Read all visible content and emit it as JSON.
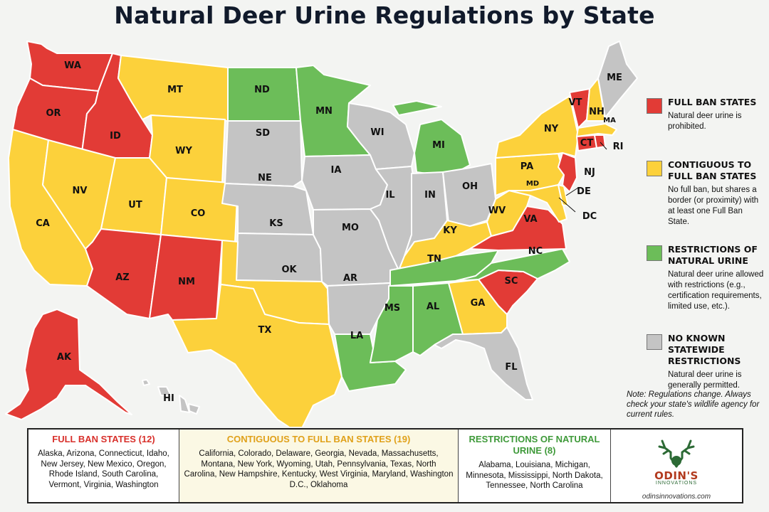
{
  "title": "Natural Deer Urine Regulations by State",
  "colors": {
    "full_ban": "#e23b36",
    "contiguous": "#fcd13b",
    "restrictions": "#6cbd59",
    "none": "#c4c4c4"
  },
  "states": {
    "WA": "WA",
    "OR": "OR",
    "ID": "ID",
    "CA": "CA",
    "NV": "NV",
    "MT": "MT",
    "WY": "WY",
    "UT": "UT",
    "CO": "CO",
    "AZ": "AZ",
    "NM": "NM",
    "ND": "ND",
    "SD": "SD",
    "NE": "NE",
    "KS": "KS",
    "OK": "OK",
    "TX": "TX",
    "MN": "MN",
    "IA": "IA",
    "MO": "MO",
    "AR": "AR",
    "LA": "LA",
    "WI": "WI",
    "IL": "IL",
    "MI": "MI",
    "IN": "IN",
    "OH": "OH",
    "KY": "KY",
    "TN": "TN",
    "MS": "MS",
    "AL": "AL",
    "GA": "GA",
    "FL": "FL",
    "SC": "SC",
    "NC": "NC",
    "VA": "VA",
    "WV": "WV",
    "PA": "PA",
    "NY": "NY",
    "VT": "VT",
    "NH": "NH",
    "ME": "ME",
    "MA": "MA",
    "CT": "CT",
    "RI": "RI",
    "NJ": "NJ",
    "DE": "DE",
    "MD": "MD",
    "DC": "DC",
    "AK": "AK",
    "HI": "HI"
  },
  "legend": {
    "full_ban": {
      "title": "FULL BAN STATES",
      "desc": "Natural deer urine is prohibited."
    },
    "contiguous": {
      "title": "CONTIGUOUS TO FULL BAN STATES",
      "desc": "No full ban, but shares a border (or proximity) with at least one Full Ban State."
    },
    "restrictions": {
      "title": "RESTRICTIONS OF NATURAL URINE",
      "desc": "Natural deer urine allowed with restrictions (e.g., certification requirements, limited use, etc.)."
    },
    "none": {
      "title": "NO KNOWN STATEWIDE RESTRICTIONS",
      "desc": "Natural deer urine is generally permitted."
    }
  },
  "note": "Note: Regulations change. Always check your state's wildlife agency for current rules.",
  "summary": {
    "full_ban": {
      "title": "FULL BAN STATES (12)",
      "list": "Alaska, Arizona, Connecticut, Idaho, New Jersey, New Mexico, Oregon, Rhode Island, South Carolina, Vermont, Virginia, Washington"
    },
    "contiguous": {
      "title": "CONTIGUOUS TO FULL BAN STATES (19)",
      "list": "California, Colorado, Delaware, Georgia, Nevada, Massachusetts, Montana, New York, Wyoming, Utah, Pennsylvania, Texas, North Carolina, New Hampshire, Kentucky, West Virginia, Maryland, Washington D.C., Oklahoma"
    },
    "restrictions": {
      "title": "RESTRICTIONS OF NATURAL URINE (8)",
      "list": "Alabama, Louisiana, Michigan, Minnesota, Mississippi, North Dakota, Tennessee, North Carolina"
    }
  },
  "logo": {
    "name": "ODIN'S",
    "sub": "INNOVATIONS",
    "url": "odinsinnovations.com"
  }
}
